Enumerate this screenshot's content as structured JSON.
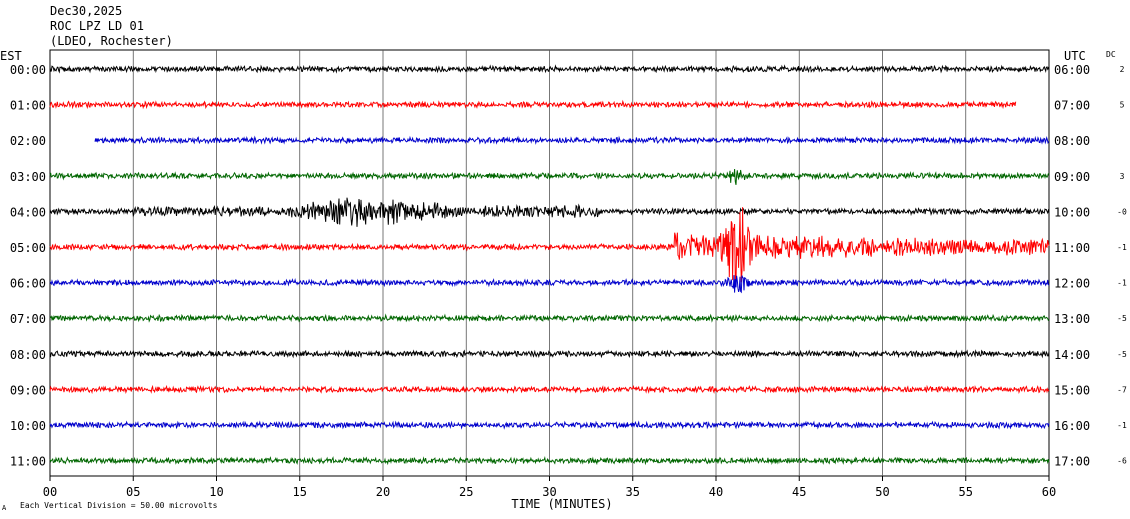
{
  "header": {
    "date": "Dec30,2025",
    "station": "ROC LPZ LD 01",
    "network": "(LDEO, Rochester)"
  },
  "left_axis_label": "EST",
  "right_axis_label": "UTC",
  "dc_label": "DC",
  "footer": {
    "scale_note": "Each Vertical Division = 50.00 microvolts",
    "corner_mark": "A"
  },
  "colors": {
    "background": "#ffffff",
    "grid": "#000000",
    "trace_cycle": [
      "#000000",
      "#ff0000",
      "#0000cc",
      "#006600"
    ]
  },
  "chart_data": {
    "type": "line",
    "chart_kind": "helicorder",
    "xlabel": "TIME (MINUTES)",
    "xlim": [
      0,
      60
    ],
    "x_ticks": [
      "00",
      "05",
      "10",
      "15",
      "20",
      "25",
      "30",
      "35",
      "40",
      "45",
      "50",
      "55",
      "60"
    ],
    "grid": "vertical lines every 5 minutes",
    "series": [
      {
        "est": "00:00",
        "utc": "06:00",
        "dc": "2",
        "color": "#000000",
        "start_min": 0,
        "end_min": 60,
        "amplitude": "low"
      },
      {
        "est": "01:00",
        "utc": "07:00",
        "dc": "5",
        "color": "#ff0000",
        "start_min": 0,
        "end_min": 58.0,
        "amplitude": "low"
      },
      {
        "est": "02:00",
        "utc": "08:00",
        "dc": "",
        "color": "#0000cc",
        "start_min": 2.7,
        "end_min": 60,
        "amplitude": "low"
      },
      {
        "est": "03:00",
        "utc": "09:00",
        "dc": "3",
        "color": "#006600",
        "start_min": 0,
        "end_min": 60,
        "amplitude": "low"
      },
      {
        "est": "04:00",
        "utc": "10:00",
        "dc": "-0",
        "color": "#000000",
        "start_min": 0,
        "end_min": 60,
        "amplitude": "surface waves 15-26 min"
      },
      {
        "est": "05:00",
        "utc": "11:00",
        "dc": "-1",
        "color": "#ff0000",
        "start_min": 0,
        "end_min": 60,
        "amplitude": "earthquake onset ~37.5 min, peak ~41 min"
      },
      {
        "est": "06:00",
        "utc": "12:00",
        "dc": "-1",
        "color": "#0000cc",
        "start_min": 0,
        "end_min": 60,
        "amplitude": "low"
      },
      {
        "est": "07:00",
        "utc": "13:00",
        "dc": "-5",
        "color": "#006600",
        "start_min": 0,
        "end_min": 60,
        "amplitude": "low"
      },
      {
        "est": "08:00",
        "utc": "14:00",
        "dc": "-5",
        "color": "#000000",
        "start_min": 0,
        "end_min": 60,
        "amplitude": "low"
      },
      {
        "est": "09:00",
        "utc": "15:00",
        "dc": "-7",
        "color": "#ff0000",
        "start_min": 0,
        "end_min": 60,
        "amplitude": "low"
      },
      {
        "est": "10:00",
        "utc": "16:00",
        "dc": "-1",
        "color": "#0000cc",
        "start_min": 0,
        "end_min": 60,
        "amplitude": "low"
      },
      {
        "est": "11:00",
        "utc": "17:00",
        "dc": "-6",
        "color": "#006600",
        "start_min": 0,
        "end_min": 60,
        "amplitude": "low"
      }
    ]
  }
}
